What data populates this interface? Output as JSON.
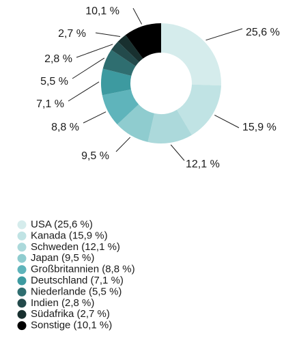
{
  "chart_data": {
    "type": "pie",
    "categories": [
      "USA",
      "Kanada",
      "Schweden",
      "Japan",
      "Großbritannien",
      "Deutschland",
      "Niederlande",
      "Indien",
      "Südafrika",
      "Sonstige"
    ],
    "values": [
      25.6,
      15.9,
      12.1,
      9.5,
      8.8,
      7.1,
      5.5,
      2.8,
      2.7,
      10.1
    ],
    "value_labels": [
      "25,6 %",
      "15,9 %",
      "12,1 %",
      "9,5 %",
      "8,8 %",
      "7,1 %",
      "5,5 %",
      "2,8 %",
      "2,7 %",
      "10,1 %"
    ],
    "legend_labels": [
      "USA (25,6 %)",
      "Kanada (15,9 %)",
      "Schweden (12,1 %)",
      "Japan (9,5 %)",
      "Großbritannien (8,8 %)",
      "Deutschland (7,1 %)",
      "Niederlande (5,5 %)",
      "Indien (2,8 %)",
      "Südafrika (2,7 %)",
      "Sonstige (10,1 %)"
    ],
    "colors": [
      "#d5ecec",
      "#c0e3e4",
      "#acd9db",
      "#8fcccf",
      "#5fb4bb",
      "#3d9aa0",
      "#2f6e70",
      "#234a4b",
      "#18302f",
      "#000000"
    ],
    "donut": true
  }
}
